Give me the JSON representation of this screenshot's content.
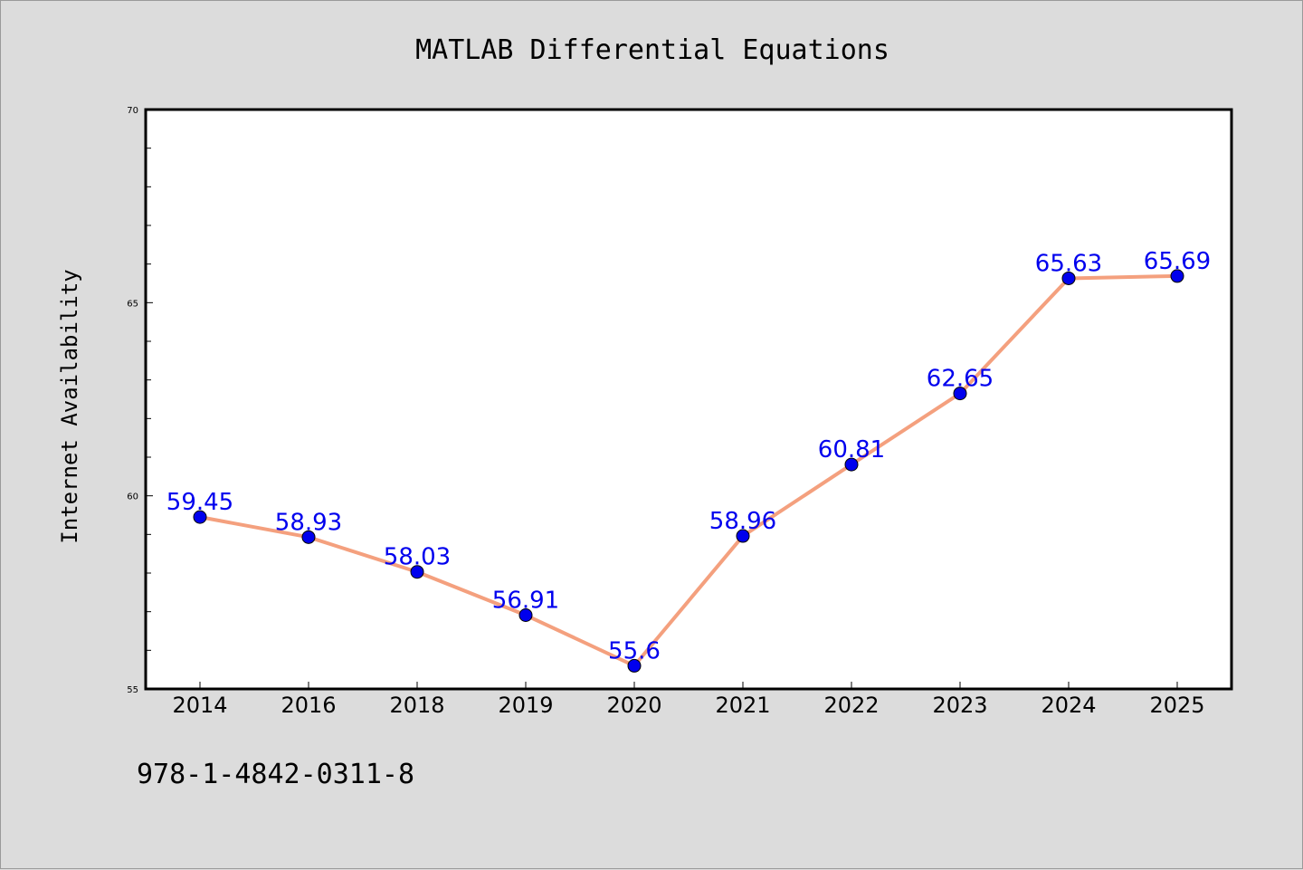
{
  "chart_data": {
    "type": "line",
    "title": "MATLAB Differential Equations",
    "ylabel": "Internet Availability",
    "xlabel": "",
    "categories": [
      "2014",
      "2016",
      "2018",
      "2019",
      "2020",
      "2021",
      "2022",
      "2023",
      "2024",
      "2025"
    ],
    "series": [
      {
        "values": [
          59.45,
          58.93,
          58.03,
          56.91,
          55.6,
          58.96,
          60.81,
          62.65,
          65.63,
          65.69
        ],
        "data_labels": [
          "59.45",
          "58.93",
          "58.03",
          "56.91",
          "55.6",
          "58.96",
          "60.81",
          "62.65",
          "65.63",
          "65.69"
        ],
        "line_color": "#f4a07e",
        "marker_color": "#0000ee",
        "label_color": "#0000ee"
      }
    ],
    "ylim": [
      55,
      70
    ],
    "yticks": [
      "55",
      "60",
      "65",
      "70"
    ],
    "grid": false,
    "legend": false
  },
  "footer": {
    "isbn": "978-1-4842-0311-8"
  },
  "colors": {
    "background": "#dcdcdc",
    "plot_background": "#ffffff",
    "axis": "#000000"
  }
}
